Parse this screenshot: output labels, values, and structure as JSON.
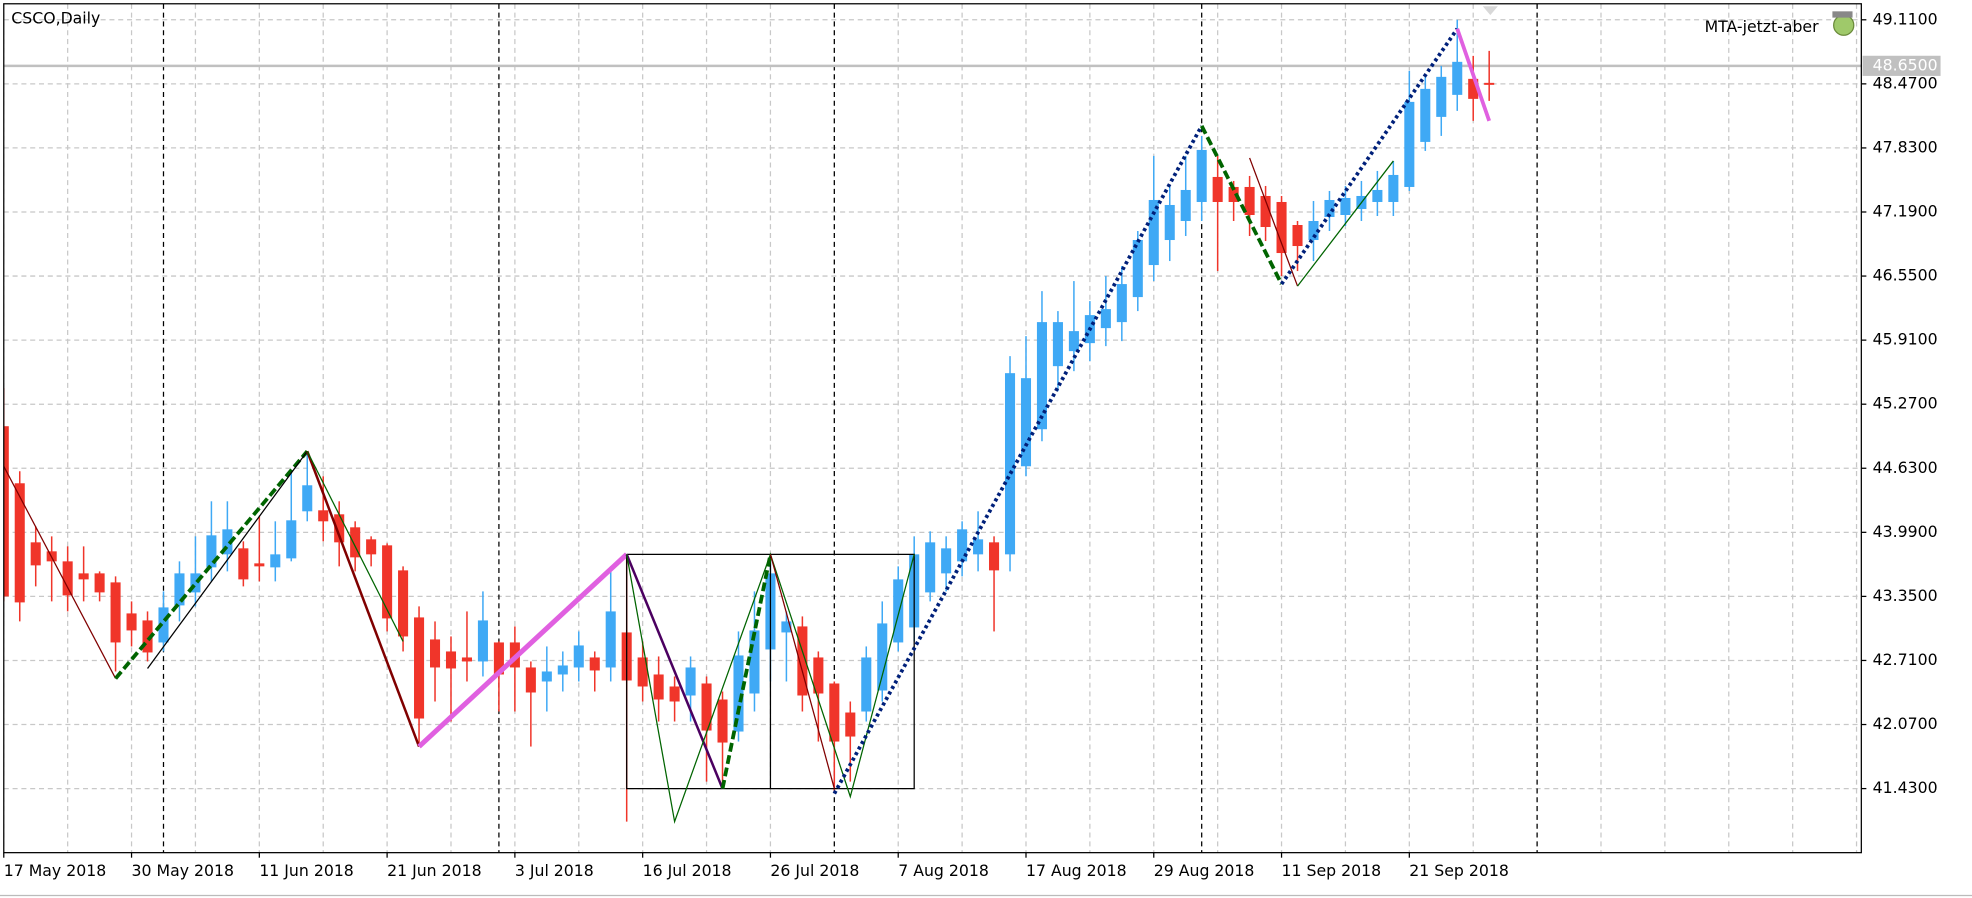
{
  "chart_data": {
    "type": "candlestick",
    "symbol_label": "CSCO,Daily",
    "indicator_label": "MTA-jetzt-aber",
    "categories": [
      "17 May 2018",
      null,
      null,
      null,
      null,
      null,
      null,
      null,
      "30 May 2018",
      null,
      null,
      null,
      null,
      null,
      null,
      null,
      "11 Jun 2018",
      null,
      null,
      null,
      null,
      null,
      null,
      null,
      "21 Jun 2018",
      null,
      null,
      null,
      null,
      null,
      null,
      null,
      "3 Jul 2018",
      null,
      null,
      null,
      null,
      null,
      null,
      null,
      "16 Jul 2018",
      null,
      null,
      null,
      null,
      null,
      null,
      null,
      "26 Jul 2018",
      null,
      null,
      null,
      null,
      null,
      null,
      null,
      "7 Aug 2018",
      null,
      null,
      null,
      null,
      null,
      null,
      null,
      "17 Aug 2018",
      null,
      null,
      null,
      null,
      null,
      null,
      null,
      "29 Aug 2018",
      null,
      null,
      null,
      null,
      null,
      null,
      null,
      "11 Sep 2018",
      null,
      null,
      null,
      null,
      null,
      null,
      null,
      "21 Sep 2018",
      null,
      null,
      null,
      null,
      null
    ],
    "open": [
      45.05,
      44.48,
      43.89,
      43.8,
      43.7,
      43.58,
      43.58,
      43.49,
      43.18,
      43.11,
      42.89,
      43.26,
      43.39,
      43.64,
      43.77,
      43.83,
      43.68,
      43.64,
      43.73,
      44.2,
      44.21,
      44.17,
      44.04,
      43.92,
      43.86,
      43.61,
      43.14,
      42.92,
      42.8,
      42.74,
      42.7,
      42.89,
      42.89,
      42.64,
      42.5,
      42.57,
      42.64,
      42.74,
      42.64,
      42.99,
      42.74,
      42.57,
      42.45,
      42.36,
      42.48,
      42.32,
      42.0,
      42.38,
      42.82,
      42.99,
      43.05,
      42.74,
      42.48,
      42.19,
      42.2,
      42.41,
      42.89,
      43.04,
      43.39,
      43.58,
      43.7,
      43.77,
      43.89,
      43.77,
      44.65,
      45.02,
      45.65,
      45.8,
      45.88,
      46.03,
      46.09,
      46.34,
      46.66,
      46.91,
      47.1,
      47.29,
      47.54,
      47.44,
      47.44,
      47.35,
      47.29,
      47.06,
      46.91,
      47.14,
      47.16,
      47.22,
      47.29,
      47.29,
      47.44,
      47.89,
      48.14,
      48.36,
      48.52,
      48.48
    ],
    "high": [
      45.43,
      44.6,
      44.05,
      43.95,
      43.85,
      43.85,
      43.6,
      43.55,
      43.3,
      43.2,
      43.4,
      43.7,
      43.95,
      44.3,
      44.3,
      43.9,
      44.15,
      44.1,
      44.6,
      44.8,
      44.55,
      44.3,
      44.1,
      43.95,
      43.88,
      43.65,
      43.25,
      43.1,
      42.95,
      43.2,
      43.4,
      42.9,
      43.05,
      42.7,
      42.85,
      42.8,
      43.0,
      42.8,
      43.65,
      43.74,
      42.9,
      42.75,
      42.55,
      42.75,
      42.55,
      42.4,
      43.0,
      43.4,
      43.76,
      43.2,
      43.15,
      42.8,
      42.5,
      42.3,
      42.85,
      43.3,
      43.65,
      43.95,
      44.0,
      43.95,
      44.1,
      44.2,
      43.95,
      45.75,
      45.95,
      46.4,
      46.2,
      46.5,
      46.3,
      46.55,
      46.65,
      47.0,
      47.75,
      47.45,
      47.75,
      47.95,
      47.75,
      47.5,
      47.55,
      47.45,
      47.35,
      47.1,
      47.3,
      47.4,
      47.45,
      47.5,
      47.6,
      47.7,
      48.6,
      48.55,
      48.65,
      49.11,
      48.75,
      48.8
    ],
    "low": [
      43.3,
      43.1,
      43.45,
      43.3,
      43.2,
      43.3,
      43.3,
      42.6,
      42.85,
      42.7,
      42.8,
      43.1,
      43.25,
      43.5,
      43.6,
      43.45,
      43.5,
      43.5,
      43.7,
      44.1,
      43.9,
      43.65,
      43.6,
      43.65,
      43.0,
      42.8,
      41.85,
      42.3,
      42.1,
      42.5,
      42.55,
      42.2,
      42.2,
      41.85,
      42.2,
      42.4,
      42.5,
      42.4,
      42.5,
      41.1,
      42.3,
      42.1,
      42.1,
      42.1,
      41.5,
      41.45,
      41.9,
      42.2,
      42.5,
      42.5,
      42.2,
      41.9,
      41.4,
      41.5,
      42.1,
      42.3,
      42.8,
      42.9,
      43.3,
      43.4,
      43.55,
      43.6,
      43.0,
      43.6,
      44.55,
      44.9,
      45.4,
      45.6,
      45.7,
      45.85,
      45.9,
      46.2,
      46.5,
      46.7,
      46.95,
      47.1,
      46.6,
      47.1,
      46.95,
      46.9,
      46.55,
      46.6,
      46.7,
      47.0,
      47.05,
      47.1,
      47.15,
      47.15,
      47.4,
      47.8,
      47.95,
      48.2,
      48.1,
      48.3
    ],
    "close": [
      43.35,
      43.29,
      43.66,
      43.7,
      43.36,
      43.52,
      43.39,
      42.89,
      43.01,
      42.79,
      43.24,
      43.58,
      43.58,
      43.96,
      44.02,
      43.52,
      43.65,
      43.77,
      44.11,
      44.46,
      44.1,
      43.89,
      43.74,
      43.77,
      43.13,
      42.95,
      42.13,
      42.64,
      42.63,
      42.7,
      43.11,
      42.57,
      42.64,
      42.39,
      42.6,
      42.66,
      42.86,
      42.61,
      43.2,
      42.51,
      42.45,
      42.32,
      42.3,
      42.64,
      42.01,
      41.89,
      42.76,
      43.01,
      43.58,
      43.1,
      42.36,
      42.38,
      41.9,
      41.95,
      42.74,
      43.08,
      43.52,
      43.77,
      43.89,
      43.83,
      44.02,
      43.92,
      43.61,
      45.58,
      45.53,
      46.09,
      46.09,
      46.0,
      46.16,
      46.22,
      46.47,
      46.91,
      47.31,
      47.26,
      47.41,
      47.81,
      47.29,
      47.29,
      47.16,
      47.04,
      46.78,
      46.85,
      47.1,
      47.31,
      47.33,
      47.35,
      47.41,
      47.56,
      48.29,
      48.42,
      48.54,
      48.69,
      48.32,
      48.46
    ],
    "up_color": "#3fa9f5",
    "down_color": "#f0352a",
    "ylim": [
      40.79,
      49.27
    ],
    "yticks": [
      {
        "value": 49.11,
        "label": "49.1100"
      },
      {
        "value": 48.47,
        "label": "48.4700"
      },
      {
        "value": 47.83,
        "label": "47.8300"
      },
      {
        "value": 47.19,
        "label": "47.1900"
      },
      {
        "value": 46.55,
        "label": "46.5500"
      },
      {
        "value": 45.91,
        "label": "45.9100"
      },
      {
        "value": 45.27,
        "label": "45.2700"
      },
      {
        "value": 44.63,
        "label": "44.6300"
      },
      {
        "value": 43.99,
        "label": "43.9900"
      },
      {
        "value": 43.35,
        "label": "43.3500"
      },
      {
        "value": 42.71,
        "label": "42.7100"
      },
      {
        "value": 42.07,
        "label": "42.0700"
      },
      {
        "value": 41.43,
        "label": "41.4300"
      }
    ],
    "grid": true,
    "price_line": {
      "value": 48.65,
      "label": "48.6500",
      "color": "#c0c0c0"
    },
    "period_separators": [
      10,
      31,
      52,
      75,
      96
    ],
    "overlays": [
      {
        "color": "#800000",
        "width": 1,
        "dash": "solid",
        "points": [
          [
            0,
            44.65
          ],
          [
            7,
            42.53
          ]
        ]
      },
      {
        "color": "#006400",
        "width": 3,
        "dash": "dashed",
        "points": [
          [
            7,
            42.53
          ],
          [
            19,
            44.8
          ]
        ]
      },
      {
        "color": "#000000",
        "width": 1,
        "dash": "solid",
        "points": [
          [
            9,
            42.63
          ],
          [
            19,
            44.8
          ]
        ]
      },
      {
        "color": "#800000",
        "width": 2,
        "dash": "solid",
        "points": [
          [
            19,
            44.8
          ],
          [
            26,
            41.85
          ]
        ]
      },
      {
        "color": "#006400",
        "width": 1,
        "dash": "solid",
        "points": [
          [
            19,
            44.8
          ],
          [
            25,
            42.9
          ]
        ]
      },
      {
        "color": "#e060e0",
        "width": 4,
        "dash": "solid",
        "points": [
          [
            26,
            41.85
          ],
          [
            39,
            43.77
          ]
        ]
      },
      {
        "color": "#000000",
        "width": 1,
        "dash": "solid",
        "points": [
          [
            39,
            43.77
          ],
          [
            48,
            43.77
          ],
          [
            48,
            41.43
          ],
          [
            39,
            41.43
          ],
          [
            39,
            43.77
          ]
        ]
      },
      {
        "color": "#000000",
        "width": 1,
        "dash": "solid",
        "points": [
          [
            48,
            43.77
          ],
          [
            57,
            43.77
          ],
          [
            57,
            41.43
          ],
          [
            48,
            41.43
          ]
        ]
      },
      {
        "color": "#4b0060",
        "width": 2,
        "dash": "solid",
        "points": [
          [
            39,
            43.77
          ],
          [
            45,
            41.43
          ]
        ]
      },
      {
        "color": "#006400",
        "width": 1,
        "dash": "solid",
        "points": [
          [
            39,
            43.77
          ],
          [
            42,
            41.1
          ],
          [
            48,
            43.77
          ],
          [
            53,
            41.35
          ],
          [
            57,
            43.77
          ]
        ]
      },
      {
        "color": "#006400",
        "width": 3,
        "dash": "dashed",
        "points": [
          [
            45,
            41.43
          ],
          [
            48,
            43.77
          ]
        ]
      },
      {
        "color": "#800000",
        "width": 1,
        "dash": "solid",
        "points": [
          [
            48,
            43.77
          ],
          [
            52,
            41.43
          ]
        ]
      },
      {
        "color": "#00207a",
        "width": 3,
        "dash": "dotted",
        "points": [
          [
            52,
            41.38
          ],
          [
            75,
            48.05
          ]
        ]
      },
      {
        "color": "#006400",
        "width": 3,
        "dash": "dashed",
        "points": [
          [
            75,
            48.05
          ],
          [
            80,
            46.47
          ]
        ]
      },
      {
        "color": "#800000",
        "width": 1,
        "dash": "solid",
        "points": [
          [
            78,
            47.73
          ],
          [
            81,
            46.45
          ]
        ]
      },
      {
        "color": "#006400",
        "width": 1,
        "dash": "solid",
        "points": [
          [
            81,
            46.45
          ],
          [
            87,
            47.7
          ]
        ]
      },
      {
        "color": "#00207a",
        "width": 3,
        "dash": "dotted",
        "points": [
          [
            80,
            46.47
          ],
          [
            91,
            49.02
          ]
        ]
      },
      {
        "color": "#e060e0",
        "width": 3,
        "dash": "solid",
        "points": [
          [
            91,
            49.02
          ],
          [
            93,
            48.1
          ]
        ]
      }
    ]
  }
}
